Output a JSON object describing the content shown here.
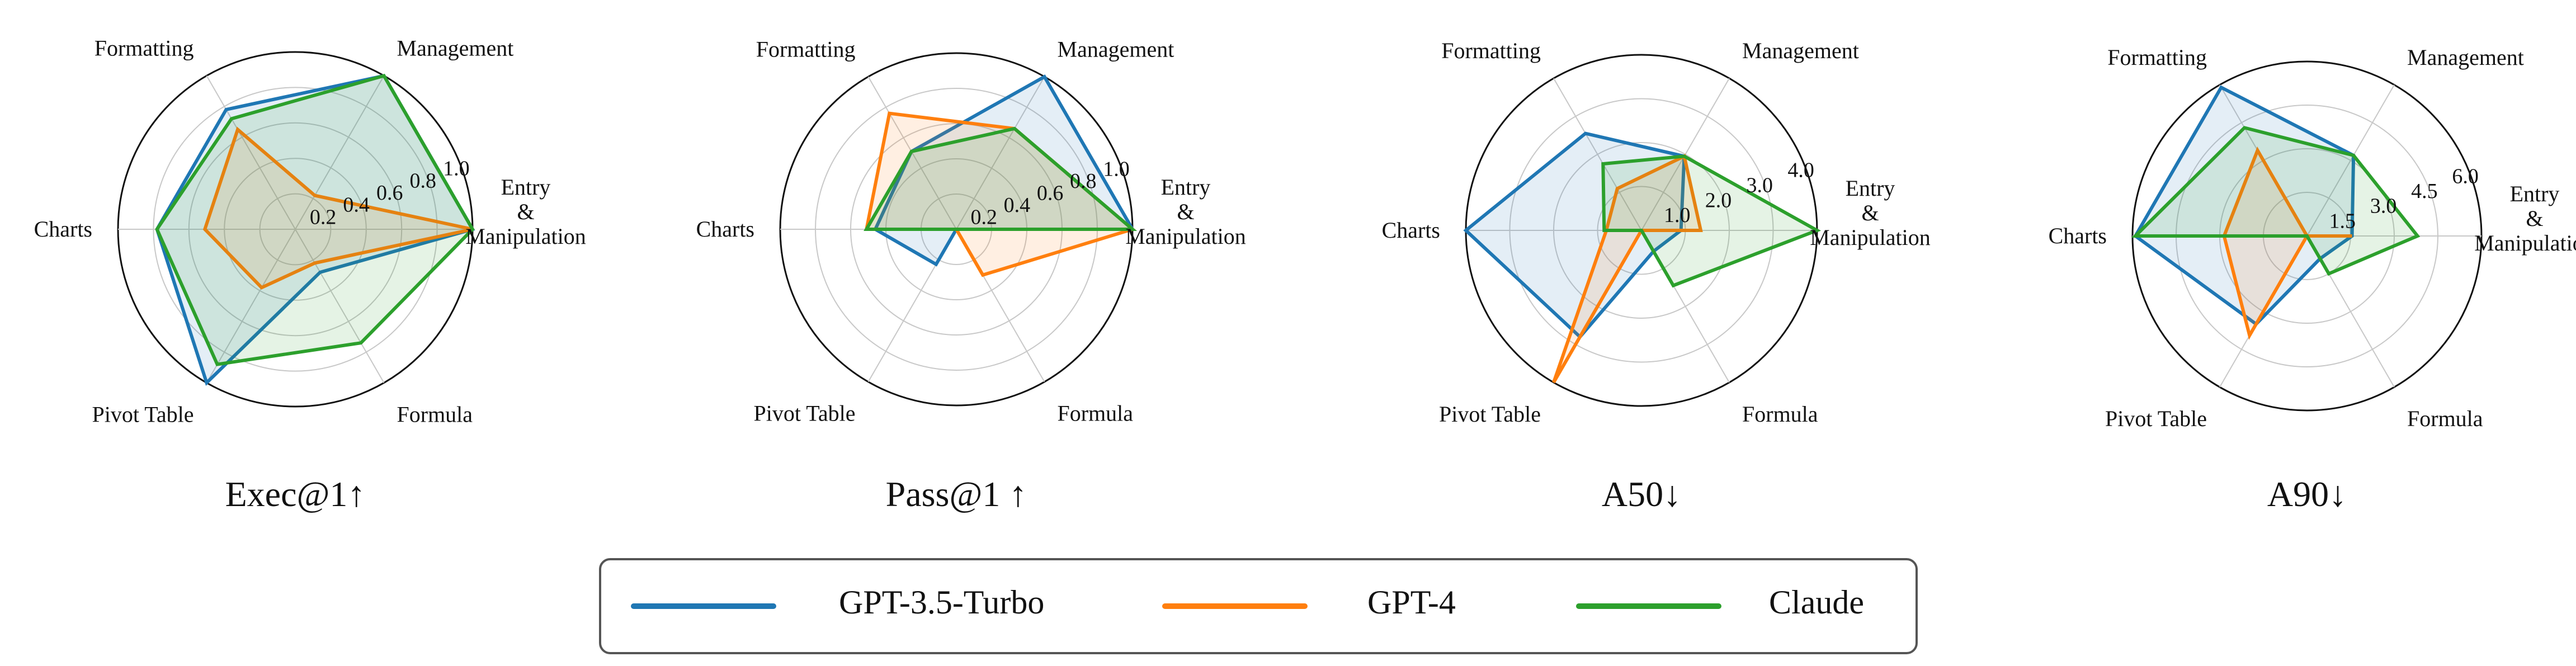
{
  "colors": {
    "GPT-3.5-Turbo": "#1f77b4",
    "GPT-4": "#ff7f0e",
    "Claude": "#2ca02c"
  },
  "categories": [
    "Entry\n&\nManipulation",
    "Management",
    "Formatting",
    "Charts",
    "Pivot Table",
    "Formula"
  ],
  "legend": [
    "GPT-3.5-Turbo",
    "GPT-4",
    "Claude"
  ],
  "chart_data": [
    {
      "type": "radar",
      "title": "Exec@1↑",
      "categories": [
        "Entry & Manipulation",
        "Management",
        "Formatting",
        "Charts",
        "Pivot Table",
        "Formula"
      ],
      "rmax": 1.0,
      "ticks": [
        "0.2",
        "0.4",
        "0.6",
        "0.8",
        "1.0"
      ],
      "tick_values": [
        0.2,
        0.4,
        0.6,
        0.8,
        1.0
      ],
      "series": [
        {
          "name": "GPT-3.5-Turbo",
          "values": [
            1.0,
            1.0,
            0.78,
            0.78,
            1.0,
            0.28
          ]
        },
        {
          "name": "GPT-4",
          "values": [
            1.0,
            0.22,
            0.65,
            0.51,
            0.38,
            0.22
          ]
        },
        {
          "name": "Claude",
          "values": [
            1.0,
            1.0,
            0.72,
            0.78,
            0.88,
            0.74
          ]
        }
      ]
    },
    {
      "type": "radar",
      "title": "Pass@1 ↑",
      "categories": [
        "Entry & Manipulation",
        "Management",
        "Formatting",
        "Charts",
        "Pivot Table",
        "Formula"
      ],
      "rmax": 1.0,
      "ticks": [
        "0.2",
        "0.4",
        "0.6",
        "0.8",
        "1.0"
      ],
      "tick_values": [
        0.2,
        0.4,
        0.6,
        0.8,
        1.0
      ],
      "series": [
        {
          "name": "GPT-3.5-Turbo",
          "values": [
            1.0,
            1.0,
            0.51,
            0.46,
            0.23,
            0.0
          ]
        },
        {
          "name": "GPT-4",
          "values": [
            1.0,
            0.66,
            0.76,
            0.51,
            0.0,
            0.3
          ]
        },
        {
          "name": "Claude",
          "values": [
            1.0,
            0.66,
            0.51,
            0.51,
            0.0,
            0.0
          ]
        }
      ]
    },
    {
      "type": "radar",
      "title": "A50↓",
      "categories": [
        "Entry & Manipulation",
        "Management",
        "Formatting",
        "Charts",
        "Pivot Table",
        "Formula"
      ],
      "rmax": 4.0,
      "ticks": [
        "1.0",
        "2.0",
        "3.0",
        "4.0"
      ],
      "tick_values": [
        1.0,
        2.0,
        3.0,
        4.0
      ],
      "series": [
        {
          "name": "GPT-3.5-Turbo",
          "values": [
            0.9,
            1.95,
            2.55,
            4.0,
            2.8,
            0.55
          ]
        },
        {
          "name": "GPT-4",
          "values": [
            1.35,
            1.95,
            1.1,
            0.8,
            4.0,
            0.0
          ]
        },
        {
          "name": "Claude",
          "values": [
            4.0,
            1.95,
            1.75,
            0.85,
            0.0,
            1.45
          ]
        }
      ]
    },
    {
      "type": "radar",
      "title": "A90↓",
      "categories": [
        "Entry & Manipulation",
        "Management",
        "Formatting",
        "Charts",
        "Pivot Table",
        "Formula"
      ],
      "rmax": 6.0,
      "ticks": [
        "1.5",
        "3.0",
        "4.5",
        "6.0"
      ],
      "tick_values": [
        1.5,
        3.0,
        4.5,
        6.0
      ],
      "series": [
        {
          "name": "GPT-3.5-Turbo",
          "values": [
            1.55,
            3.2,
            5.9,
            5.9,
            3.5,
            0.9
          ]
        },
        {
          "name": "GPT-4",
          "values": [
            1.55,
            0.0,
            3.4,
            2.85,
            3.95,
            0.0
          ]
        },
        {
          "name": "Claude",
          "values": [
            3.8,
            3.2,
            4.3,
            5.9,
            0.0,
            1.5
          ]
        }
      ]
    }
  ]
}
